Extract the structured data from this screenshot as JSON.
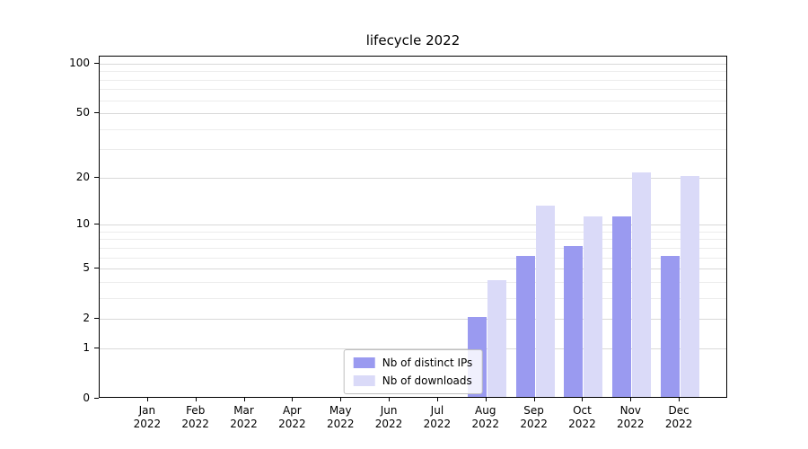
{
  "title": "lifecycle 2022",
  "colors": {
    "ips": "#9a9af0",
    "downloads": "#dadaf8",
    "grid_major": "#d9d9d9",
    "grid_minor": "#ececec",
    "axis": "#000000",
    "background": "#ffffff"
  },
  "chart_data": {
    "type": "bar",
    "title": "lifecycle 2022",
    "scale": "log1p",
    "categories": [
      "Jan",
      "Feb",
      "Mar",
      "Apr",
      "May",
      "Jun",
      "Jul",
      "Aug",
      "Sep",
      "Oct",
      "Nov",
      "Dec"
    ],
    "year": "2022",
    "series": [
      {
        "name": "Nb of distinct IPs",
        "color": "#9a9af0",
        "values": [
          0,
          0,
          0,
          0,
          0,
          0,
          0,
          2,
          6,
          7,
          11,
          6
        ]
      },
      {
        "name": "Nb of downloads",
        "color": "#dadaf8",
        "values": [
          0,
          0,
          0,
          0,
          0,
          0,
          0,
          4,
          13,
          11,
          21,
          20
        ]
      }
    ],
    "yticks": [
      0,
      1,
      2,
      5,
      10,
      20,
      50,
      100
    ],
    "gridlines_minor": [
      3,
      4,
      6,
      7,
      8,
      9,
      30,
      40,
      60,
      70,
      80,
      90
    ],
    "gridlines_major": [
      1,
      2,
      5,
      10,
      20,
      50,
      100
    ],
    "ylim": [
      0,
      100
    ],
    "xlabel": "",
    "ylabel": "",
    "legend_position": "lower center",
    "legend": [
      "Nb of distinct IPs",
      "Nb of downloads"
    ]
  }
}
